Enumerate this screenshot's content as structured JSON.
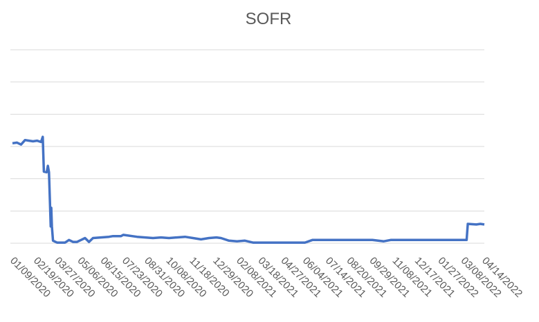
{
  "chart_data": {
    "type": "line",
    "title": "SOFR",
    "x": [
      "01/09/2020",
      "01/17/2020",
      "01/24/2020",
      "01/31/2020",
      "02/07/2020",
      "02/14/2020",
      "02/21/2020",
      "02/28/2020",
      "03/02/2020",
      "03/04/2020",
      "03/09/2020",
      "03/11/2020",
      "03/13/2020",
      "03/16/2020",
      "03/17/2020",
      "03/18/2020",
      "03/20/2020",
      "03/27/2020",
      "04/03/2020",
      "04/10/2020",
      "04/17/2020",
      "04/24/2020",
      "05/01/2020",
      "05/08/2020",
      "05/15/2020",
      "05/22/2020",
      "05/29/2020",
      "06/12/2020",
      "06/26/2020",
      "07/03/2020",
      "07/17/2020",
      "07/21/2020",
      "08/14/2020",
      "08/28/2020",
      "09/11/2020",
      "09/25/2020",
      "10/09/2020",
      "10/23/2020",
      "11/06/2020",
      "11/20/2020",
      "12/04/2020",
      "12/18/2020",
      "12/31/2020",
      "01/08/2021",
      "01/22/2021",
      "02/05/2021",
      "02/19/2021",
      "03/05/2021",
      "03/19/2021",
      "04/02/2021",
      "04/16/2021",
      "04/30/2021",
      "05/14/2021",
      "05/28/2021",
      "06/04/2021",
      "06/17/2021",
      "07/01/2021",
      "08/02/2021",
      "09/01/2021",
      "09/30/2021",
      "10/20/2021",
      "11/01/2021",
      "12/01/2021",
      "12/31/2021",
      "02/01/2022",
      "03/14/2022",
      "03/16/2022",
      "03/31/2022",
      "04/07/2022",
      "04/14/2022"
    ],
    "series": [
      {
        "name": "SOFR",
        "color": "#4472c4",
        "values": [
          1.55,
          1.56,
          1.53,
          1.6,
          1.59,
          1.58,
          1.59,
          1.57,
          1.65,
          1.11,
          1.1,
          1.2,
          1.1,
          0.26,
          0.55,
          0.26,
          0.04,
          0.01,
          0.01,
          0.01,
          0.05,
          0.02,
          0.02,
          0.05,
          0.08,
          0.02,
          0.08,
          0.09,
          0.1,
          0.11,
          0.11,
          0.13,
          0.1,
          0.09,
          0.08,
          0.09,
          0.08,
          0.09,
          0.1,
          0.08,
          0.06,
          0.08,
          0.09,
          0.08,
          0.04,
          0.03,
          0.04,
          0.01,
          0.01,
          0.01,
          0.01,
          0.01,
          0.01,
          0.01,
          0.01,
          0.05,
          0.05,
          0.05,
          0.05,
          0.05,
          0.03,
          0.05,
          0.05,
          0.05,
          0.05,
          0.05,
          0.3,
          0.29,
          0.3,
          0.29
        ]
      }
    ],
    "xlim": [
      "01/09/2020",
      "04/14/2022"
    ],
    "xticks": [
      "01/09/2020",
      "02/19/2020",
      "03/27/2020",
      "05/06/2020",
      "06/15/2020",
      "07/23/2020",
      "08/31/2020",
      "10/08/2020",
      "11/18/2020",
      "12/29/2020",
      "02/08/2021",
      "03/18/2021",
      "04/27/2021",
      "06/04/2021",
      "07/14/2021",
      "08/20/2021",
      "09/29/2021",
      "11/08/2021",
      "12/17/2021",
      "01/27/2022",
      "03/08/2022",
      "04/14/2022"
    ],
    "ylim": [
      0,
      3
    ],
    "yticks": [
      0,
      0.5,
      1,
      1.5,
      2,
      2.5,
      3
    ],
    "grid": true
  }
}
